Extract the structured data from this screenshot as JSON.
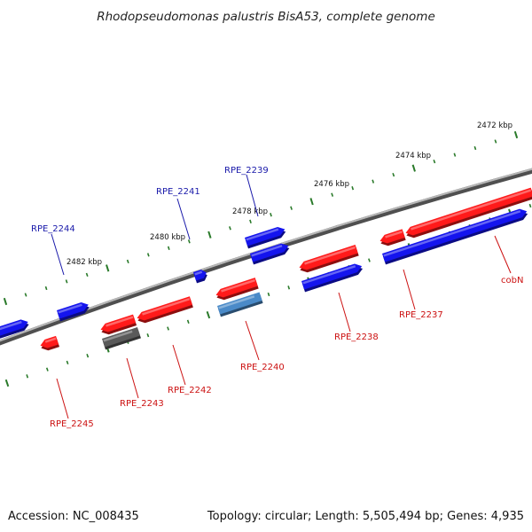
{
  "title": "Rhodopseudomonas palustris BisA53, complete genome",
  "footer": {
    "accession": "Accession: NC_008435",
    "summary": "Topology: circular; Length: 5,505,494 bp; Genes: 4,935"
  },
  "colors": {
    "forward_gene": "#ff1a1a",
    "reverse_gene": "#1414ee",
    "pseudo_gene": "#5a5a5a",
    "rna_gene": "#4a8ac8",
    "backbone": "#808080",
    "tick": "#2a7a2a",
    "label_forward": "#cc1111",
    "label_reverse": "#1a1aaa"
  },
  "scale_labels": [
    "2472 kbp",
    "2474 kbp",
    "2476 kbp",
    "2478 kbp",
    "2480 kbp",
    "2482 kbp"
  ],
  "gene_labels": [
    {
      "text": "RPE_2239",
      "strand": "reverse"
    },
    {
      "text": "RPE_2241",
      "strand": "reverse"
    },
    {
      "text": "RPE_2244",
      "strand": "reverse"
    },
    {
      "text": "RPE_2237",
      "strand": "forward"
    },
    {
      "text": "RPE_2238",
      "strand": "forward"
    },
    {
      "text": "RPE_2240",
      "strand": "forward"
    },
    {
      "text": "RPE_2242",
      "strand": "forward"
    },
    {
      "text": "RPE_2243",
      "strand": "forward"
    },
    {
      "text": "RPE_2245",
      "strand": "forward"
    },
    {
      "text": "cobN",
      "strand": "forward"
    }
  ]
}
